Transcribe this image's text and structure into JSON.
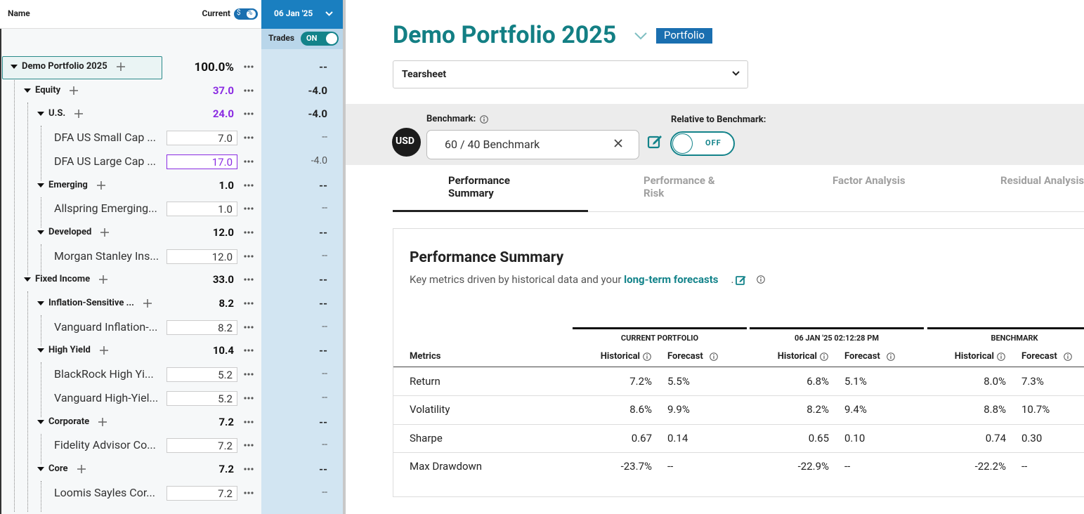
{
  "sidebar": {
    "header": {
      "name": "Name",
      "current": "Current",
      "toggle_dollar": "$",
      "toggle_percent": "%",
      "date": "06 Jan '25",
      "trades": "Trades",
      "trades_toggle": "ON"
    },
    "tree": {
      "label": "Demo Portfolio 2025",
      "current": "100.0%",
      "trade": "--",
      "children": [
        {
          "label": "Equity",
          "current": "37.0",
          "trade": "-4.0",
          "children": [
            {
              "label": "U.S.",
              "current": "24.0",
              "trade": "-4.0",
              "children": [
                {
                  "label": "DFA US Small Cap ...",
                  "current": "7.0",
                  "trade": "--"
                },
                {
                  "label": "DFA US Large Cap ...",
                  "current": "17.0",
                  "trade": "-4.0"
                }
              ]
            },
            {
              "label": "Emerging",
              "current": "1.0",
              "trade": "--",
              "children": [
                {
                  "label": "Allspring Emerging...",
                  "current": "1.0",
                  "trade": "--"
                }
              ]
            },
            {
              "label": "Developed",
              "current": "12.0",
              "trade": "--",
              "children": [
                {
                  "label": "Morgan Stanley Ins...",
                  "current": "12.0",
                  "trade": "--"
                }
              ]
            }
          ]
        },
        {
          "label": "Fixed Income",
          "current": "33.0",
          "trade": "--",
          "children": [
            {
              "label": "Inflation-Sensitive ...",
              "current": "8.2",
              "trade": "--",
              "children": [
                {
                  "label": "Vanguard Inflation-...",
                  "current": "8.2",
                  "trade": "--"
                }
              ]
            },
            {
              "label": "High Yield",
              "current": "10.4",
              "trade": "--",
              "children": [
                {
                  "label": "BlackRock High Yi...",
                  "current": "5.2",
                  "trade": "--"
                },
                {
                  "label": "Vanguard High-Yiel...",
                  "current": "5.2",
                  "trade": "--"
                }
              ]
            },
            {
              "label": "Corporate",
              "current": "7.2",
              "trade": "--",
              "children": [
                {
                  "label": "Fidelity Advisor Co...",
                  "current": "7.2",
                  "trade": "--"
                }
              ]
            },
            {
              "label": "Core",
              "current": "7.2",
              "trade": "--",
              "children": [
                {
                  "label": "Loomis Sayles Cor...",
                  "current": "7.2",
                  "trade": "--"
                }
              ]
            }
          ]
        }
      ]
    }
  },
  "main": {
    "title": "Demo Portfolio 2025",
    "badge": "Portfolio",
    "view_select": "Tearsheet",
    "currency": "USD",
    "benchmark_label": "Benchmark:",
    "benchmark_value": "60 / 40 Benchmark",
    "relative_label": "Relative to Benchmark:",
    "relative_toggle": "OFF",
    "tabs": [
      "Performance Summary",
      "Performance & Risk",
      "Factor Analysis",
      "Residual Analysis"
    ],
    "card": {
      "title": "Performance Summary",
      "subtitle": "Key metrics driven by historical data and your ",
      "link": "long-term forecasts",
      "subtitle_end": ".",
      "table": {
        "metric_header": "Metrics",
        "groups": [
          "CURRENT PORTFOLIO",
          "06 JAN '25 02:12:28 PM",
          "BENCHMARK"
        ],
        "subcolumns": [
          "Historical",
          "Forecast"
        ],
        "rows": [
          [
            "Return",
            "7.2%",
            "5.5%",
            "6.8%",
            "5.1%",
            "8.0%",
            "7.3%"
          ],
          [
            "Volatility",
            "8.6%",
            "9.9%",
            "8.2%",
            "9.4%",
            "8.8%",
            "10.7%"
          ],
          [
            "Sharpe",
            "0.67",
            "0.14",
            "0.65",
            "0.10",
            "0.74",
            "0.30"
          ],
          [
            "Max Drawdown",
            "-23.7%",
            "--",
            "-22.9%",
            "--",
            "-22.2%",
            "--"
          ]
        ]
      }
    }
  }
}
